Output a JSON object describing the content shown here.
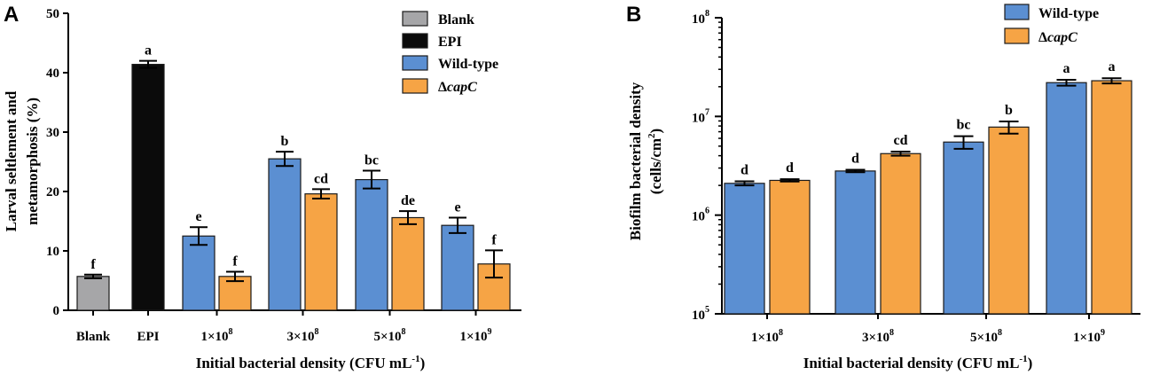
{
  "chart_data": [
    {
      "type": "bar",
      "panel": "A",
      "title": "",
      "xlabel": "Initial bacterial density (CFU mL",
      "xlabel_sup": "-1",
      "xlabel_close": ")",
      "ylabel_line1": "Larval seltlement and",
      "ylabel_line2": "metamorphosis (%)",
      "ylim": [
        0,
        50
      ],
      "yticks": [
        "0",
        "10",
        "20",
        "30",
        "40",
        "50"
      ],
      "colors": {
        "Blank": "#a6a6a8",
        "EPI": "#0b0b0b",
        "Wild-type": "#5b8fd2",
        "capC": "#f6a445"
      },
      "legend": {
        "position": "top-right",
        "entries": [
          {
            "key": "Blank",
            "label": "Blank",
            "prefix": "",
            "italic": ""
          },
          {
            "key": "EPI",
            "label": "EPI",
            "prefix": "",
            "italic": ""
          },
          {
            "key": "Wild-type",
            "label": "Wild-type",
            "prefix": "",
            "italic": ""
          },
          {
            "key": "capC",
            "label": "",
            "prefix": "Δ",
            "italic": "capC"
          }
        ]
      },
      "groups": [
        {
          "label": "Blank",
          "mant": "",
          "sup": "",
          "bars": [
            {
              "series": "Blank",
              "value": 5.7,
              "error": 0.3,
              "sig": "f"
            }
          ]
        },
        {
          "label": "EPI",
          "mant": "",
          "sup": "",
          "bars": [
            {
              "series": "EPI",
              "value": 41.4,
              "error": 0.6,
              "sig": "a"
            }
          ]
        },
        {
          "label": "",
          "mant": "1×10",
          "sup": "8",
          "bars": [
            {
              "series": "Wild-type",
              "value": 12.5,
              "error": 1.5,
              "sig": "e"
            },
            {
              "series": "capC",
              "value": 5.7,
              "error": 0.8,
              "sig": "f"
            }
          ]
        },
        {
          "label": "",
          "mant": "3×10",
          "sup": "8",
          "bars": [
            {
              "series": "Wild-type",
              "value": 25.5,
              "error": 1.2,
              "sig": "b"
            },
            {
              "series": "capC",
              "value": 19.6,
              "error": 0.8,
              "sig": "cd"
            }
          ]
        },
        {
          "label": "",
          "mant": "5×10",
          "sup": "8",
          "bars": [
            {
              "series": "Wild-type",
              "value": 22.0,
              "error": 1.5,
              "sig": "bc"
            },
            {
              "series": "capC",
              "value": 15.6,
              "error": 1.1,
              "sig": "de"
            }
          ]
        },
        {
          "label": "",
          "mant": "1×10",
          "sup": "9",
          "bars": [
            {
              "series": "Wild-type",
              "value": 14.3,
              "error": 1.3,
              "sig": "e"
            },
            {
              "series": "capC",
              "value": 7.8,
              "error": 2.3,
              "sig": "f"
            }
          ]
        }
      ]
    },
    {
      "type": "bar",
      "panel": "B",
      "title": "",
      "scale": "log",
      "xlabel": "Initial bacterial density (CFU mL",
      "xlabel_sup": "-1",
      "xlabel_close": ")",
      "ylabel_line1": "Biofilm bacterial density",
      "ylabel_line2": "(cells/cm",
      "ylabel_line2_sup": "2",
      "ylabel_line2_close": ")",
      "ylim": [
        100000,
        100000000
      ],
      "yticks": [
        {
          "base": "10",
          "exp": "5"
        },
        {
          "base": "10",
          "exp": "6"
        },
        {
          "base": "10",
          "exp": "7"
        },
        {
          "base": "10",
          "exp": "8"
        }
      ],
      "colors": {
        "Wild-type": "#5b8fd2",
        "capC": "#f6a445"
      },
      "legend": {
        "position": "top-right",
        "entries": [
          {
            "key": "Wild-type",
            "label": "Wild-type",
            "prefix": "",
            "italic": ""
          },
          {
            "key": "capC",
            "label": "",
            "prefix": "Δ",
            "italic": "capC"
          }
        ]
      },
      "groups": [
        {
          "label": "",
          "mant": "1×10",
          "sup": "8",
          "bars": [
            {
              "series": "Wild-type",
              "value": 2100000,
              "error": 100000,
              "sig": "d"
            },
            {
              "series": "capC",
              "value": 2250000,
              "error": 60000,
              "sig": "d"
            }
          ]
        },
        {
          "label": "",
          "mant": "3×10",
          "sup": "8",
          "bars": [
            {
              "series": "Wild-type",
              "value": 2800000,
              "error": 80000,
              "sig": "d"
            },
            {
              "series": "capC",
              "value": 4200000,
              "error": 200000,
              "sig": "cd"
            }
          ]
        },
        {
          "label": "",
          "mant": "5×10",
          "sup": "8",
          "bars": [
            {
              "series": "Wild-type",
              "value": 5500000,
              "error": 800000,
              "sig": "bc"
            },
            {
              "series": "capC",
              "value": 7800000,
              "error": 1100000,
              "sig": "b"
            }
          ]
        },
        {
          "label": "",
          "mant": "1×10",
          "sup": "9",
          "bars": [
            {
              "series": "Wild-type",
              "value": 22000000,
              "error": 1500000,
              "sig": "a"
            },
            {
              "series": "capC",
              "value": 23000000,
              "error": 1400000,
              "sig": "a"
            }
          ]
        }
      ]
    }
  ]
}
